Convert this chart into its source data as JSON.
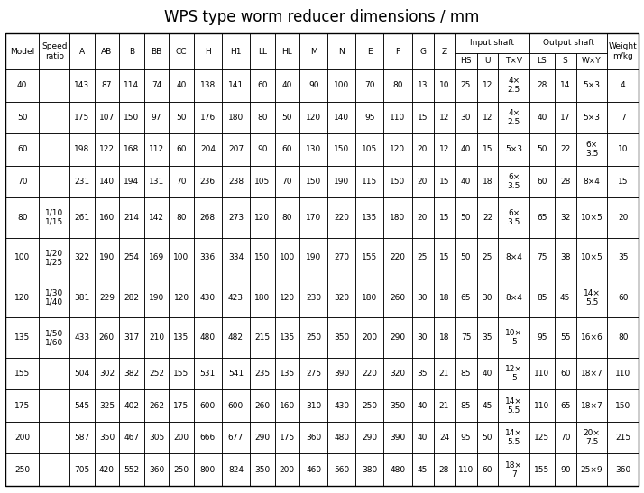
{
  "title": "WPS type worm reducer dimensions / mm",
  "rows": [
    [
      "40",
      "",
      "143",
      "87",
      "114",
      "74",
      "40",
      "138",
      "141",
      "60",
      "40",
      "90",
      "100",
      "70",
      "80",
      "13",
      "10",
      "25",
      "12",
      "4×\n2.5",
      "28",
      "14",
      "5×3",
      "4"
    ],
    [
      "50",
      "",
      "175",
      "107",
      "150",
      "97",
      "50",
      "176",
      "180",
      "80",
      "50",
      "120",
      "140",
      "95",
      "110",
      "15",
      "12",
      "30",
      "12",
      "4×\n2.5",
      "40",
      "17",
      "5×3",
      "7"
    ],
    [
      "60",
      "",
      "198",
      "122",
      "168",
      "112",
      "60",
      "204",
      "207",
      "90",
      "60",
      "130",
      "150",
      "105",
      "120",
      "20",
      "12",
      "40",
      "15",
      "5×3",
      "50",
      "22",
      "6×\n3.5",
      "10"
    ],
    [
      "70",
      "",
      "231",
      "140",
      "194",
      "131",
      "70",
      "236",
      "238",
      "105",
      "70",
      "150",
      "190",
      "115",
      "150",
      "20",
      "15",
      "40",
      "18",
      "6×\n3.5",
      "60",
      "28",
      "8×4",
      "15"
    ],
    [
      "80",
      "1/10\n1/15",
      "261",
      "160",
      "214",
      "142",
      "80",
      "268",
      "273",
      "120",
      "80",
      "170",
      "220",
      "135",
      "180",
      "20",
      "15",
      "50",
      "22",
      "6×\n3.5",
      "65",
      "32",
      "10×5",
      "20"
    ],
    [
      "100",
      "1/20\n1/25",
      "322",
      "190",
      "254",
      "169",
      "100",
      "336",
      "334",
      "150",
      "100",
      "190",
      "270",
      "155",
      "220",
      "25",
      "15",
      "50",
      "25",
      "8×4",
      "75",
      "38",
      "10×5",
      "35"
    ],
    [
      "120",
      "1/30\n1/40",
      "381",
      "229",
      "282",
      "190",
      "120",
      "430",
      "423",
      "180",
      "120",
      "230",
      "320",
      "180",
      "260",
      "30",
      "18",
      "65",
      "30",
      "8×4",
      "85",
      "45",
      "14×\n5.5",
      "60"
    ],
    [
      "135",
      "1/50\n1/60",
      "433",
      "260",
      "317",
      "210",
      "135",
      "480",
      "482",
      "215",
      "135",
      "250",
      "350",
      "200",
      "290",
      "30",
      "18",
      "75",
      "35",
      "10×\n5",
      "95",
      "55",
      "16×6",
      "80"
    ],
    [
      "155",
      "",
      "504",
      "302",
      "382",
      "252",
      "155",
      "531",
      "541",
      "235",
      "135",
      "275",
      "390",
      "220",
      "320",
      "35",
      "21",
      "85",
      "40",
      "12×\n5",
      "110",
      "60",
      "18×7",
      "110"
    ],
    [
      "175",
      "",
      "545",
      "325",
      "402",
      "262",
      "175",
      "600",
      "600",
      "260",
      "160",
      "310",
      "430",
      "250",
      "350",
      "40",
      "21",
      "85",
      "45",
      "14×\n5.5",
      "110",
      "65",
      "18×7",
      "150"
    ],
    [
      "200",
      "",
      "587",
      "350",
      "467",
      "305",
      "200",
      "666",
      "677",
      "290",
      "175",
      "360",
      "480",
      "290",
      "390",
      "40",
      "24",
      "95",
      "50",
      "14×\n5.5",
      "125",
      "70",
      "20×\n7.5",
      "215"
    ],
    [
      "250",
      "",
      "705",
      "420",
      "552",
      "360",
      "250",
      "800",
      "824",
      "350",
      "200",
      "460",
      "560",
      "380",
      "480",
      "45",
      "28",
      "110",
      "60",
      "18×\n7",
      "155",
      "90",
      "25×9",
      "360"
    ]
  ],
  "dim_labels": [
    "A",
    "AB",
    "B",
    "BB",
    "CC",
    "H",
    "H1",
    "LL",
    "HL",
    "M",
    "N",
    "E",
    "F",
    "G",
    "Z"
  ],
  "input_sub": [
    "HS",
    "U",
    "T×V"
  ],
  "output_sub": [
    "LS",
    "S",
    "W×Y"
  ],
  "bg_color": "#ffffff",
  "line_color": "#000000",
  "text_color": "#000000",
  "title_fontsize": 12,
  "cell_fontsize": 6.5
}
